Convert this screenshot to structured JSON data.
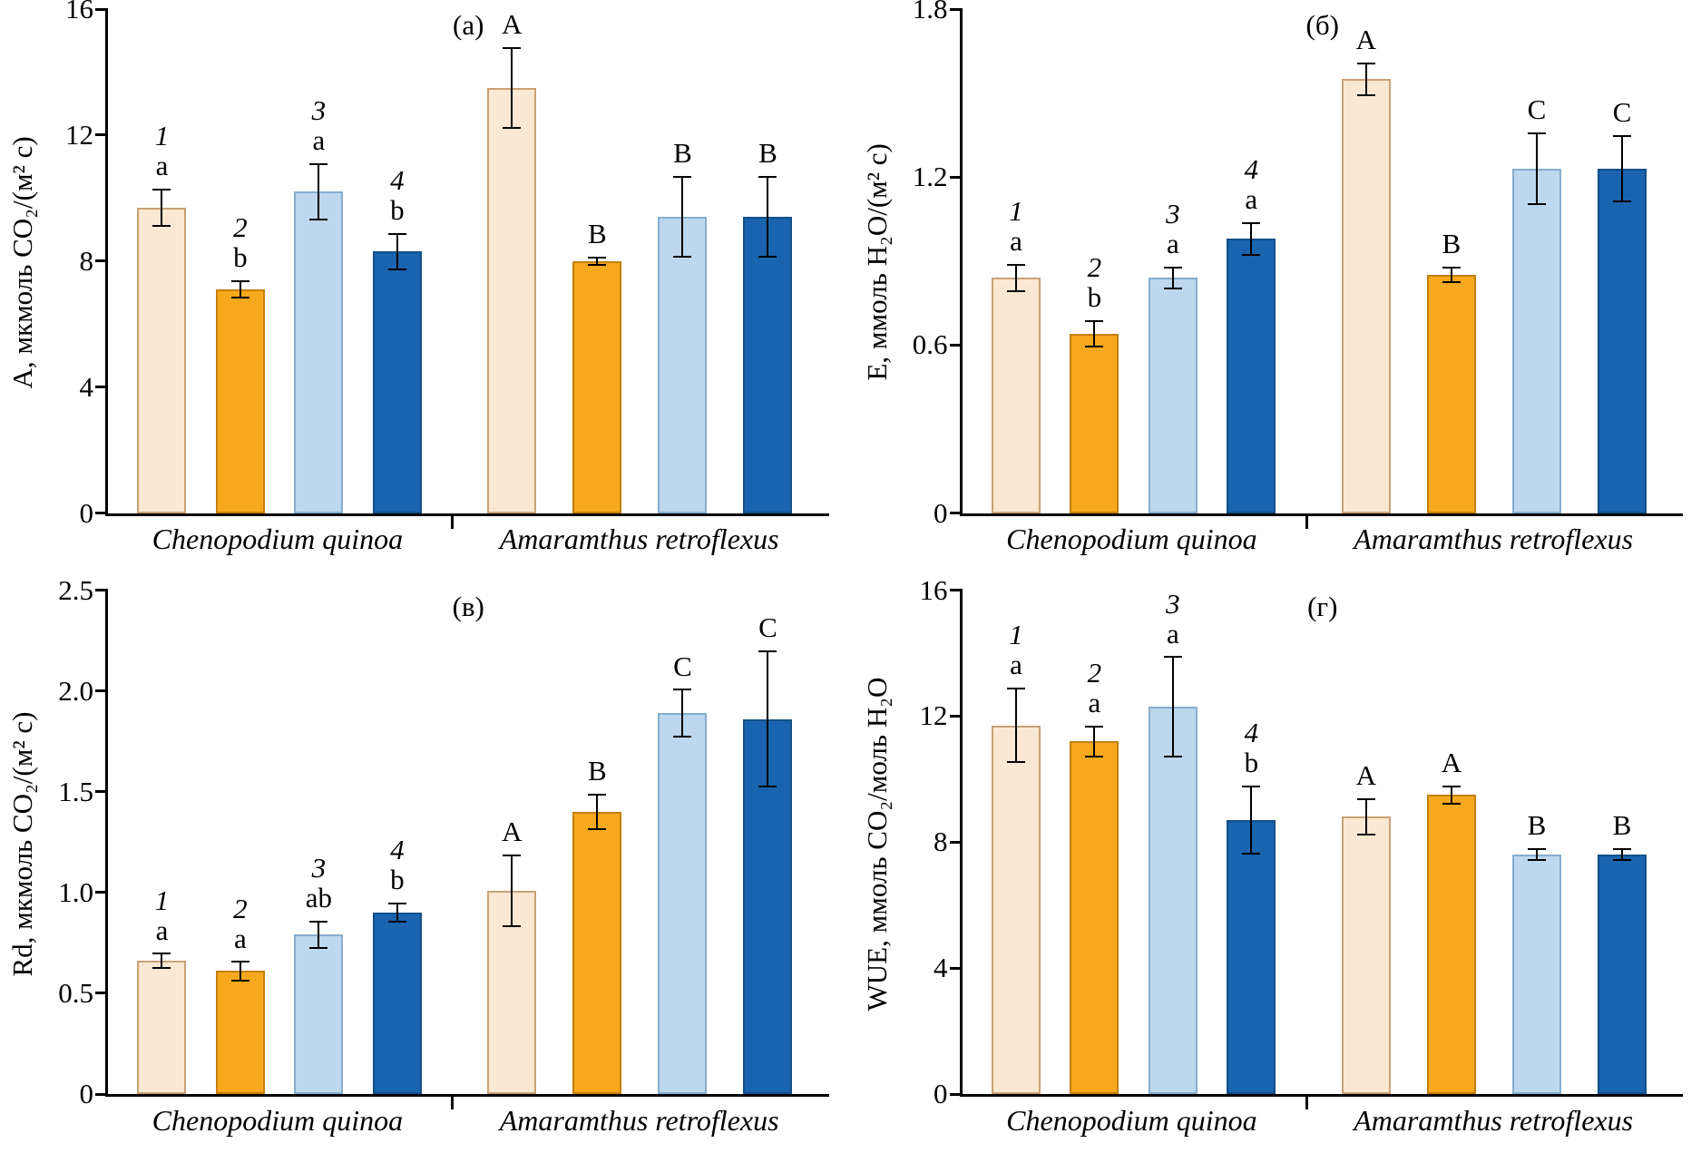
{
  "style": {
    "bar_fill_colors": [
      "#FBE8D2",
      "#F6A91E",
      "#BDD7EE",
      "#1A63AE"
    ],
    "bar_border_colors": [
      "#C9A177",
      "#C77F0A",
      "#86AECD",
      "#124F88"
    ],
    "axis_color": "#000000",
    "error_bar_color": "#000000"
  },
  "chart_data": [
    {
      "type": "bar",
      "key": "a",
      "panel_label": "(а)",
      "ylabel": "A, мкмоль CO₂/(м² с)",
      "ylim": [
        0,
        16
      ],
      "ytick_values": [
        0,
        4,
        8,
        12,
        16
      ],
      "ytick_labels": [
        "0",
        "4",
        "8",
        "12",
        "16"
      ],
      "legend_position": "none",
      "grid": false,
      "groups": [
        {
          "category": "Chenopodium quinoa",
          "bars": [
            {
              "series": "1",
              "value": 9.7,
              "error": 0.6,
              "num_label": "1",
              "sig_label": "a"
            },
            {
              "series": "2",
              "value": 7.1,
              "error": 0.3,
              "num_label": "2",
              "sig_label": "b"
            },
            {
              "series": "3",
              "value": 10.2,
              "error": 0.9,
              "num_label": "3",
              "sig_label": "a"
            },
            {
              "series": "4",
              "value": 8.3,
              "error": 0.6,
              "num_label": "4",
              "sig_label": "b"
            }
          ]
        },
        {
          "category": "Amaramthus retroflexus",
          "bars": [
            {
              "series": "1",
              "value": 13.5,
              "error": 1.3,
              "num_label": "",
              "sig_label": "A"
            },
            {
              "series": "2",
              "value": 8.0,
              "error": 0.15,
              "num_label": "",
              "sig_label": "B"
            },
            {
              "series": "3",
              "value": 9.4,
              "error": 1.3,
              "num_label": "",
              "sig_label": "B"
            },
            {
              "series": "4",
              "value": 9.4,
              "error": 1.3,
              "num_label": "",
              "sig_label": "B"
            }
          ]
        }
      ]
    },
    {
      "type": "bar",
      "key": "b",
      "panel_label": "(б)",
      "ylabel": "E, ммоль H₂O/(м² с)",
      "ylim": [
        0,
        1.8
      ],
      "ytick_values": [
        0,
        0.6,
        1.2,
        1.8
      ],
      "ytick_labels": [
        "0",
        "0.6",
        "1.2",
        "1.8"
      ],
      "legend_position": "none",
      "grid": false,
      "groups": [
        {
          "category": "Chenopodium quinoa",
          "bars": [
            {
              "series": "1",
              "value": 0.84,
              "error": 0.05,
              "num_label": "1",
              "sig_label": "a"
            },
            {
              "series": "2",
              "value": 0.64,
              "error": 0.05,
              "num_label": "2",
              "sig_label": "b"
            },
            {
              "series": "3",
              "value": 0.84,
              "error": 0.04,
              "num_label": "3",
              "sig_label": "a"
            },
            {
              "series": "4",
              "value": 0.98,
              "error": 0.06,
              "num_label": "4",
              "sig_label": "a"
            }
          ]
        },
        {
          "category": "Amaramthus retroflexus",
          "bars": [
            {
              "series": "1",
              "value": 1.55,
              "error": 0.06,
              "num_label": "",
              "sig_label": "A"
            },
            {
              "series": "2",
              "value": 0.85,
              "error": 0.03,
              "num_label": "",
              "sig_label": "B"
            },
            {
              "series": "3",
              "value": 1.23,
              "error": 0.13,
              "num_label": "",
              "sig_label": "C"
            },
            {
              "series": "4",
              "value": 1.23,
              "error": 0.12,
              "num_label": "",
              "sig_label": "C"
            }
          ]
        }
      ]
    },
    {
      "type": "bar",
      "key": "v",
      "panel_label": "(в)",
      "ylabel": "Rd, мкмоль CO₂/(м² с)",
      "ylim": [
        0,
        2.5
      ],
      "ytick_values": [
        0,
        0.5,
        1.0,
        1.5,
        2.0,
        2.5
      ],
      "ytick_labels": [
        "0",
        "0.5",
        "1.0",
        "1.5",
        "2.0",
        "2.5"
      ],
      "legend_position": "none",
      "grid": false,
      "groups": [
        {
          "category": "Chenopodium quinoa",
          "bars": [
            {
              "series": "1",
              "value": 0.66,
              "error": 0.04,
              "num_label": "1",
              "sig_label": "a"
            },
            {
              "series": "2",
              "value": 0.61,
              "error": 0.05,
              "num_label": "2",
              "sig_label": "a"
            },
            {
              "series": "3",
              "value": 0.79,
              "error": 0.07,
              "num_label": "3",
              "sig_label": "ab"
            },
            {
              "series": "4",
              "value": 0.9,
              "error": 0.05,
              "num_label": "4",
              "sig_label": "b"
            }
          ]
        },
        {
          "category": "Amaramthus retroflexus",
          "bars": [
            {
              "series": "1",
              "value": 1.01,
              "error": 0.18,
              "num_label": "",
              "sig_label": "A"
            },
            {
              "series": "2",
              "value": 1.4,
              "error": 0.09,
              "num_label": "",
              "sig_label": "B"
            },
            {
              "series": "3",
              "value": 1.89,
              "error": 0.12,
              "num_label": "",
              "sig_label": "C"
            },
            {
              "series": "4",
              "value": 1.86,
              "error": 0.34,
              "num_label": "",
              "sig_label": "C"
            }
          ]
        }
      ]
    },
    {
      "type": "bar",
      "key": "g",
      "panel_label": "(г)",
      "ylabel": "WUE, ммоль CO₂/моль H₂O",
      "ylim": [
        0,
        16
      ],
      "ytick_values": [
        0,
        4,
        8,
        12,
        16
      ],
      "ytick_labels": [
        "0",
        "4",
        "8",
        "12",
        "16"
      ],
      "legend_position": "none",
      "grid": false,
      "groups": [
        {
          "category": "Chenopodium quinoa",
          "bars": [
            {
              "series": "1",
              "value": 11.7,
              "error": 1.2,
              "num_label": "1",
              "sig_label": "a"
            },
            {
              "series": "2",
              "value": 11.2,
              "error": 0.5,
              "num_label": "2",
              "sig_label": "a"
            },
            {
              "series": "3",
              "value": 12.3,
              "error": 1.6,
              "num_label": "3",
              "sig_label": "a"
            },
            {
              "series": "4",
              "value": 8.7,
              "error": 1.1,
              "num_label": "4",
              "sig_label": "b"
            }
          ]
        },
        {
          "category": "Amaramthus retroflexus",
          "bars": [
            {
              "series": "1",
              "value": 8.8,
              "error": 0.6,
              "num_label": "",
              "sig_label": "A"
            },
            {
              "series": "2",
              "value": 9.5,
              "error": 0.3,
              "num_label": "",
              "sig_label": "A"
            },
            {
              "series": "3",
              "value": 7.6,
              "error": 0.2,
              "num_label": "",
              "sig_label": "B"
            },
            {
              "series": "4",
              "value": 7.6,
              "error": 0.2,
              "num_label": "",
              "sig_label": "B"
            }
          ]
        }
      ]
    }
  ]
}
